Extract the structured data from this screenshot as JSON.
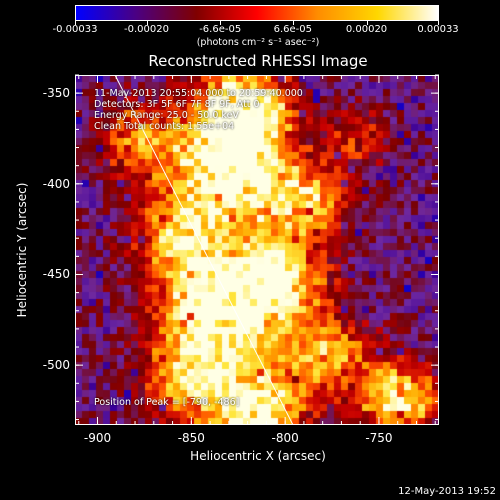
{
  "colorbar": {
    "tick_labels": [
      "-0.00033",
      "-0.00020",
      "-6.6e-05",
      "6.6e-05",
      "0.00020",
      "0.00033"
    ],
    "tick_values": [
      -0.00033,
      -0.0002,
      -6.6e-05,
      6.6e-05,
      0.0002,
      0.00033
    ],
    "range": [
      -0.00033,
      0.00033
    ],
    "units": "(photons cm⁻² s⁻¹ asec⁻²)",
    "colors": [
      "#0000ff",
      "#4b0082",
      "#800000",
      "#ff0000",
      "#ff8c00",
      "#ffd700",
      "#ffffff"
    ]
  },
  "title": "Reconstructed RHESSI Image",
  "annotations": {
    "time_range": "11-May-2013 20:55:04.000 to 20:59:40.000",
    "detectors": "Detectors: 3F 5F 6F 7F 8F 9F, Att 0",
    "energy_range": "Energy Range: 25.0 - 50.0 keV",
    "method": "Clean    Total counts: 1.55e+04",
    "peak": "Position of Peak = [-790, -486]"
  },
  "axes": {
    "xlabel": "Heliocentric X (arcsec)",
    "ylabel": "Heliocentric Y (arcsec)",
    "xlim": [
      -912,
      -718
    ],
    "ylim": [
      -533,
      -340
    ],
    "xticks": [
      -900,
      -850,
      -800,
      -750
    ],
    "xtick_labels": [
      "-900",
      "-850",
      "-800",
      "-750"
    ],
    "yticks": [
      -350,
      -400,
      -450,
      -500
    ],
    "ytick_labels": [
      "-350",
      "-400",
      "-450",
      "-500"
    ]
  },
  "footer_date": "12-May-2013 19:52"
}
